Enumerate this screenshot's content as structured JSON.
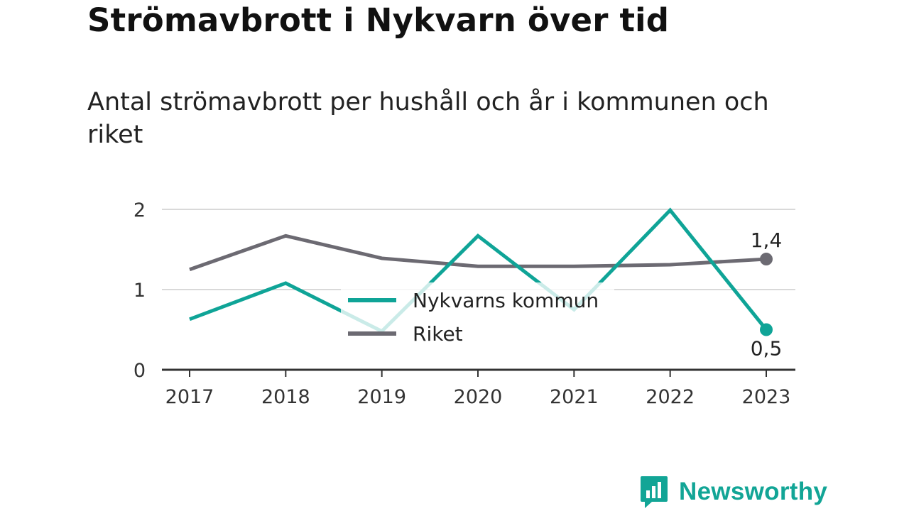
{
  "header": {
    "title": "Strömavbrott i Nykvarn över tid",
    "subtitle": "Antal strömavbrott per hushåll och år i kommunen och riket"
  },
  "brand": {
    "name": "Newsworthy",
    "icon": "bar-chart-speech-bubble-icon",
    "color": "#12a596"
  },
  "chart_data": {
    "type": "line",
    "x": [
      "2017",
      "2018",
      "2019",
      "2020",
      "2021",
      "2022",
      "2023"
    ],
    "ylim": [
      0,
      2
    ],
    "yticks": [
      "0",
      "1",
      "2"
    ],
    "grid": true,
    "legend_position": "center",
    "series": [
      {
        "name": "Nykvarns kommun",
        "color": "#0fa497",
        "values": [
          0.63,
          1.08,
          0.48,
          1.67,
          0.75,
          1.99,
          0.5
        ],
        "end_label": "0,5"
      },
      {
        "name": "Riket",
        "color": "#6c6a72",
        "values": [
          1.25,
          1.67,
          1.39,
          1.29,
          1.29,
          1.31,
          1.38
        ],
        "end_label": "1,4"
      }
    ]
  }
}
